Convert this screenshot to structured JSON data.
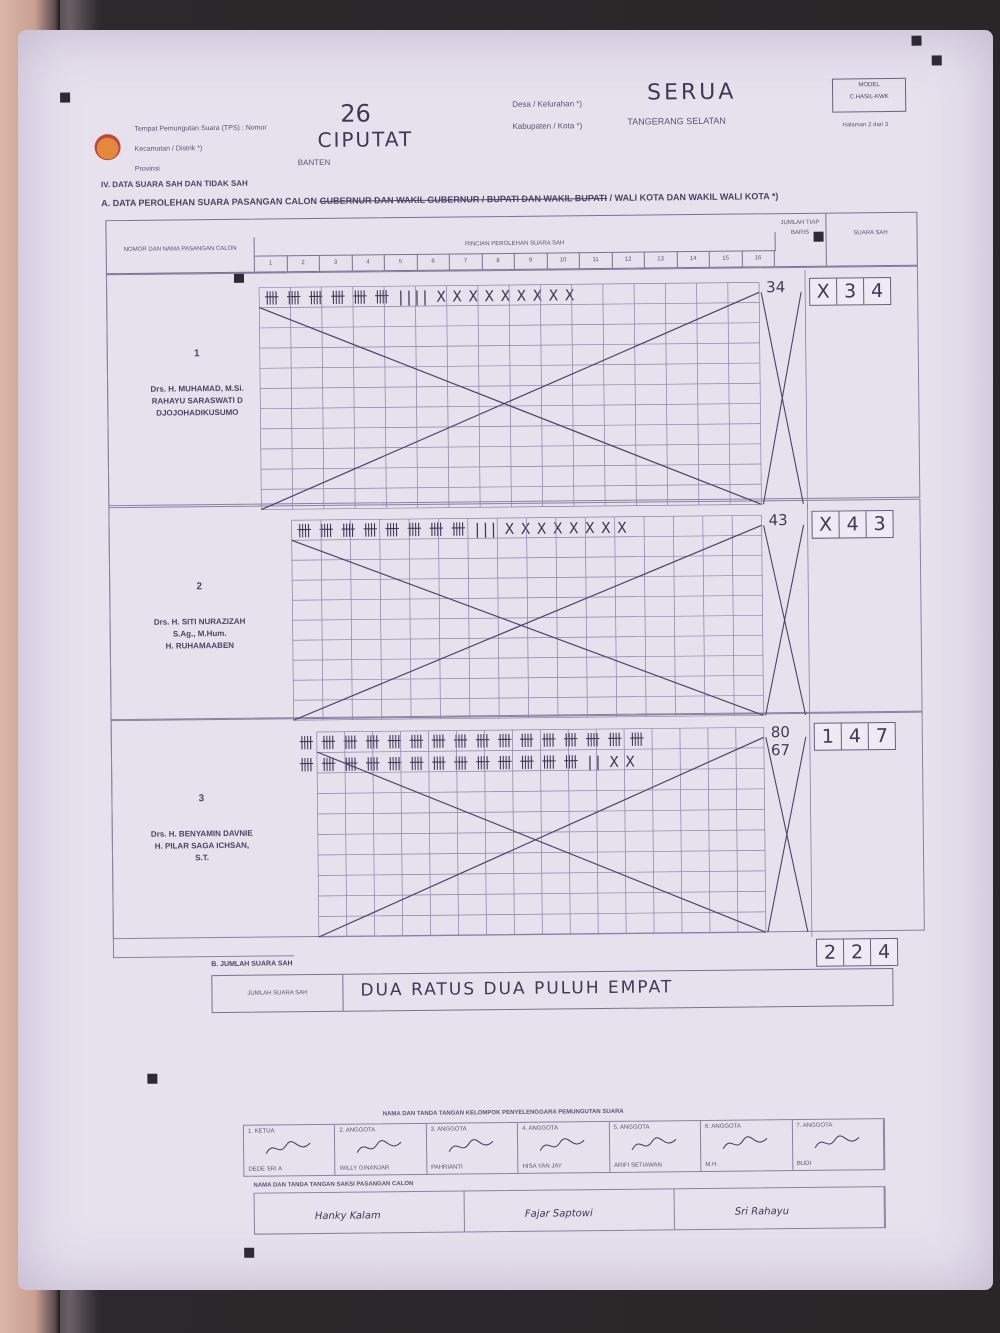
{
  "header": {
    "tps_label": "Tempat Pemungutan Suara (TPS) : Nomor",
    "tps_number": "26",
    "kecamatan_label": "Kecamatan / Distrik *)",
    "kecamatan_value": "CIPUTAT",
    "provinsi_label": "Provinsi",
    "provinsi_value": "BANTEN",
    "desa_label": "Desa / Kelurahan *)",
    "desa_value": "SERUA",
    "kabupaten_label": "Kabupaten / Kota *)",
    "kabupaten_value": "TANGERANG SELATAN",
    "model_title": "MODEL",
    "model_code": "C.HASIL-KWK",
    "page_info": "Halaman 2 dari 3"
  },
  "section_iv": {
    "title": "IV. DATA SUARA SAH DAN TIDAK SAH",
    "subtitle_prefix": "A. DATA PEROLEHAN SUARA PASANGAN CALON",
    "subtitle_struck": "GUBERNUR DAN WAKIL GUBERNUR / BUPATI DAN WAKIL BUPATI",
    "subtitle_suffix": "/ WALI KOTA DAN WAKIL WALI KOTA *)"
  },
  "table_header": {
    "col_candidate": "NOMOR DAN NAMA PASANGAN CALON",
    "col_breakdown": "RINCIAN PEROLEHAN SUARA SAH",
    "col_row_total": "JUMLAH TIAP BARIS",
    "col_valid_votes": "SUARA SAH",
    "col_numbers": [
      "1",
      "2",
      "3",
      "4",
      "5",
      "6",
      "7",
      "8",
      "9",
      "10",
      "11",
      "12",
      "13",
      "14",
      "15",
      "16"
    ]
  },
  "candidates": [
    {
      "number": "1",
      "names": [
        "Drs. H. MUHAMAD, M.Si.",
        "RAHAYU SARASWATI D",
        "DJOJOHADIKUSUMO"
      ],
      "tally_rows": [
        "卌 卌 卌 卌 卌 卌 ||||  X X X X X X X X X"
      ],
      "row_totals": [
        "34"
      ],
      "votes_digits": [
        "X",
        "3",
        "4"
      ]
    },
    {
      "number": "2",
      "names": [
        "Drs. H. SITI NURAZIZAH",
        "S.Ag., M.Hum.",
        "H. RUHAMAABEN"
      ],
      "tally_rows": [
        "卌 卌 卌 卌 卌 卌 卌 卌 |||  X X X X X X X X"
      ],
      "row_totals": [
        "43"
      ],
      "votes_digits": [
        "X",
        "4",
        "3"
      ]
    },
    {
      "number": "3",
      "names": [
        "Drs. H. BENYAMIN DAVNIE",
        "H. PILAR SAGA ICHSAN,",
        "S.T."
      ],
      "tally_rows": [
        "卌 卌 卌 卌 卌 卌 卌 卌 卌 卌 卌 卌 卌 卌 卌 卌",
        "卌 卌 卌 卌 卌 卌 卌 卌 卌 卌 卌 卌 卌 ||  X X"
      ],
      "row_totals": [
        "80",
        "67"
      ],
      "votes_digits": [
        "1",
        "4",
        "7"
      ]
    }
  ],
  "total": {
    "section_label": "B. JUMLAH SUARA SAH",
    "row_label": "JUMLAH SUARA SAH",
    "in_words": "DUA RATUS DUA PULUH EMPAT",
    "digits": [
      "2",
      "2",
      "4"
    ]
  },
  "signatures": {
    "kpps_title": "NAMA DAN TANDA TANGAN KELOMPOK PENYELENGGARA PEMUNGUTAN SUARA",
    "kpps_roles": [
      "1. KETUA",
      "2. ANGGOTA",
      "3. ANGGOTA",
      "4. ANGGOTA",
      "5. ANGGOTA",
      "6. ANGGOTA",
      "7. ANGGOTA"
    ],
    "kpps_names": [
      "DEDE SRI A",
      "WILLY GINANJAR",
      "PAHRIANTI",
      "HISA YAN JAY",
      "ARIFI SETIAWAN",
      "M.H.",
      "BUDI"
    ],
    "saksi_title": "NAMA DAN TANDA TANGAN SAKSI PASANGAN CALON",
    "saksi_names": [
      "Hanky Kalam",
      "Fajar Saptowi",
      "Sri Rahayu"
    ]
  }
}
